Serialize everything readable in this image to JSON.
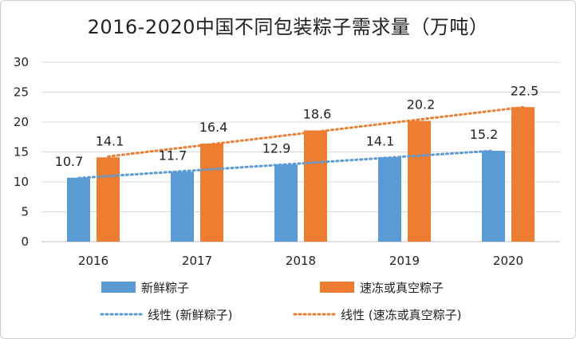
{
  "chart_data": {
    "type": "bar",
    "title": "2016-2020中国不同包装粽子需求量（万吨）",
    "categories": [
      "2016",
      "2017",
      "2018",
      "2019",
      "2020"
    ],
    "ylim": [
      0,
      30
    ],
    "yticks": [
      0,
      5,
      10,
      15,
      20,
      25,
      30
    ],
    "grid": true,
    "legend_position": "bottom",
    "series": [
      {
        "name": "新鲜粽子",
        "color": "#5b9bd5",
        "values": [
          10.7,
          11.7,
          12.9,
          14.1,
          15.2
        ]
      },
      {
        "name": "速冻或真空粽子",
        "color": "#ed7d31",
        "values": [
          14.1,
          16.4,
          18.6,
          20.2,
          22.5
        ]
      }
    ],
    "trendlines": [
      {
        "name": "线性 (新鲜粽子)",
        "series": 0,
        "color": "#5b9bd5",
        "style": "dotted"
      },
      {
        "name": "线性 (速冻或真空粽子)",
        "series": 1,
        "color": "#ed7d31",
        "style": "dotted"
      }
    ]
  }
}
